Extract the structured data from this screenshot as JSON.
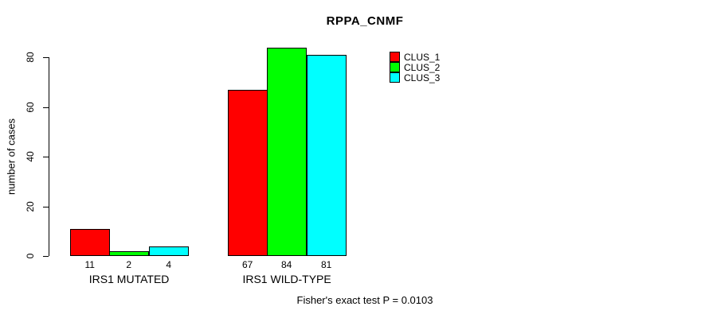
{
  "page": {
    "background": "#ffffff",
    "text_color": "#000000",
    "axis_color": "#000000"
  },
  "chart_data": {
    "type": "bar",
    "title": "RPPA_CNMF",
    "xlabel": "",
    "ylabel": "number of cases",
    "footnote": "Fisher's exact test P = 0.0103",
    "categories": [
      "IRS1 MUTATED",
      "IRS1 WILD-TYPE"
    ],
    "series": [
      {
        "name": "CLUS_1",
        "color": "#ff0000",
        "values": [
          11,
          67
        ]
      },
      {
        "name": "CLUS_2",
        "color": "#00ff00",
        "values": [
          2,
          84
        ]
      },
      {
        "name": "CLUS_3",
        "color": "#00ffff",
        "values": [
          4,
          81
        ]
      }
    ],
    "ylim": [
      0,
      80
    ],
    "yticks": [
      0,
      20,
      40,
      60,
      80
    ],
    "grid": false,
    "bar_value_labels": true,
    "legend_position": "top-right",
    "legend_entries": [
      "CLUS_1",
      "CLUS_2",
      "CLUS_3"
    ]
  }
}
